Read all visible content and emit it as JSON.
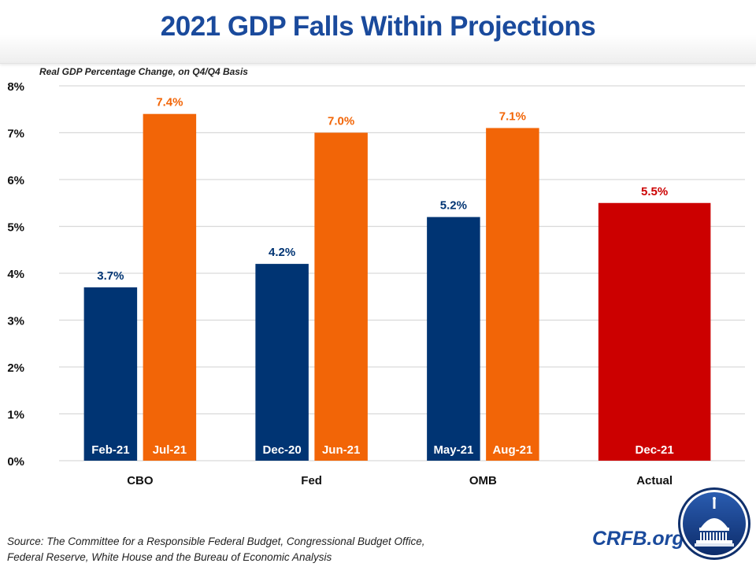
{
  "header": {
    "title": "2021 GDP Falls Within Projections"
  },
  "chart_data": {
    "type": "bar",
    "title": "2021 GDP Falls Within Projections",
    "subtitle": "Real GDP Percentage Change,  on Q4/Q4 Basis",
    "xlabel": "",
    "ylabel": "Real GDP Percentage Change, on Q4/Q4 Basis",
    "ylim": [
      0,
      8
    ],
    "yticks": [
      0,
      1,
      2,
      3,
      4,
      5,
      6,
      7,
      8
    ],
    "ytick_labels": [
      "0%",
      "1%",
      "2%",
      "3%",
      "4%",
      "5%",
      "6%",
      "7%",
      "8%"
    ],
    "grid": true,
    "colors": {
      "early_projection": "#003473",
      "later_projection": "#f26507",
      "actual": "#cc0000"
    },
    "groups": [
      {
        "category": "CBO",
        "bars": [
          {
            "label": "Feb-21",
            "value": 3.7,
            "value_label": "3.7%",
            "kind": "early_projection"
          },
          {
            "label": "Jul-21",
            "value": 7.4,
            "value_label": "7.4%",
            "kind": "later_projection"
          }
        ]
      },
      {
        "category": "Fed",
        "bars": [
          {
            "label": "Dec-20",
            "value": 4.2,
            "value_label": "4.2%",
            "kind": "early_projection"
          },
          {
            "label": "Jun-21",
            "value": 7.0,
            "value_label": "7.0%",
            "kind": "later_projection"
          }
        ]
      },
      {
        "category": "OMB",
        "bars": [
          {
            "label": "May-21",
            "value": 5.2,
            "value_label": "5.2%",
            "kind": "early_projection"
          },
          {
            "label": "Aug-21",
            "value": 7.1,
            "value_label": "7.1%",
            "kind": "later_projection"
          }
        ]
      },
      {
        "category": "Actual",
        "bars": [
          {
            "label": "Dec-21",
            "value": 5.5,
            "value_label": "5.5%",
            "kind": "actual"
          }
        ]
      }
    ]
  },
  "footer": {
    "source_line1": "Source: The Committee for a Responsible Federal Budget, Congressional Budget Office,",
    "source_line2": "Federal Reserve, White House and the Bureau of Economic Analysis",
    "brand": "CRFB.org"
  }
}
